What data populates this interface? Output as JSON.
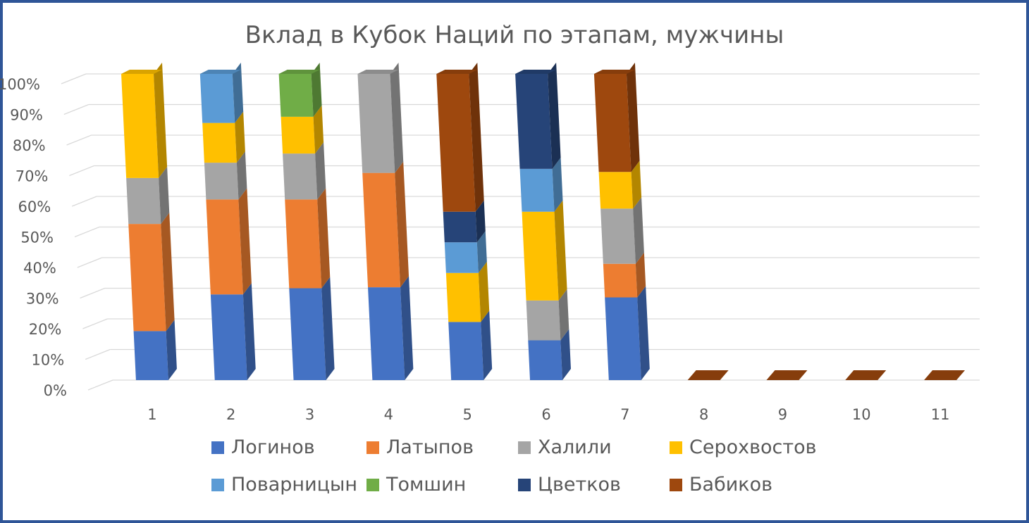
{
  "chart_data": {
    "type": "bar",
    "stacked": true,
    "percent_stacked": true,
    "three_d": true,
    "title": "Вклад в Кубок Наций по этапам, мужчины",
    "xlabel": "",
    "ylabel": "",
    "ylim": [
      0,
      100
    ],
    "yticks": [
      "0%",
      "10%",
      "20%",
      "30%",
      "40%",
      "50%",
      "60%",
      "70%",
      "80%",
      "90%",
      "100%"
    ],
    "categories": [
      "1",
      "2",
      "3",
      "4",
      "5",
      "6",
      "7",
      "8",
      "9",
      "10",
      "11"
    ],
    "grid": true,
    "legend_position": "bottom",
    "series": [
      {
        "name": "Логинов",
        "color": "#4472c4",
        "values": [
          16,
          28,
          30,
          30,
          19,
          13,
          27,
          0,
          0,
          0,
          0
        ]
      },
      {
        "name": "Латыпов",
        "color": "#ed7d31",
        "values": [
          35,
          31,
          29,
          37,
          0,
          0,
          11,
          0,
          0,
          0,
          0
        ]
      },
      {
        "name": "Халили",
        "color": "#a5a5a5",
        "values": [
          15,
          12,
          15,
          32,
          0,
          13,
          18,
          0,
          0,
          0,
          0
        ]
      },
      {
        "name": "Серохвостов",
        "color": "#ffc000",
        "values": [
          34,
          13,
          12,
          0,
          16,
          29,
          12,
          0,
          0,
          0,
          0
        ]
      },
      {
        "name": "Поварницын",
        "color": "#5b9bd5",
        "values": [
          0,
          16,
          0,
          0,
          10,
          14,
          0,
          0,
          0,
          0,
          0
        ]
      },
      {
        "name": "Томшин",
        "color": "#70ad47",
        "values": [
          0,
          0,
          14,
          0,
          0,
          0,
          0,
          0,
          0,
          0,
          0
        ]
      },
      {
        "name": "Цветков",
        "color": "#264478",
        "values": [
          0,
          0,
          0,
          0,
          10,
          31,
          0,
          0,
          0,
          0,
          0
        ]
      },
      {
        "name": "Бабиков",
        "color": "#9e480e",
        "values": [
          0,
          0,
          0,
          0,
          45,
          0,
          32,
          0,
          0,
          0,
          0
        ]
      }
    ]
  }
}
